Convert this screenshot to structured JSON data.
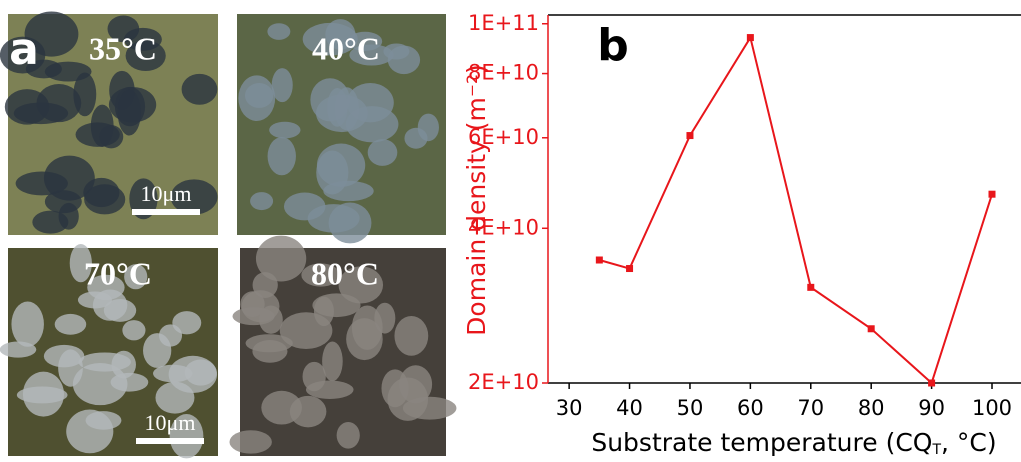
{
  "panel_a": {
    "label": "a",
    "images": [
      {
        "temperature": "35°C",
        "scale_bar": "10μm"
      },
      {
        "temperature": "40°C"
      },
      {
        "temperature": "70°C",
        "scale_bar": "10μm"
      },
      {
        "temperature": "80°C"
      }
    ]
  },
  "chart_data": {
    "type": "line",
    "panel_label": "b",
    "y_label": "Domain density (m⁻²)",
    "x_label": {
      "text": "Substrate temperature (CQ",
      "sub": "T",
      "tail": ", °C)"
    },
    "x": [
      35,
      40,
      50,
      60,
      70,
      80,
      90,
      100
    ],
    "values": [
      34700000000,
      33400000000,
      60600000000,
      94000000000,
      30700000000,
      25500000000,
      20000000000,
      46600000000
    ],
    "color": "#e8161b",
    "marker": "square",
    "log_y": true,
    "xlim": [
      26.5,
      104.8
    ],
    "xticks": [
      30,
      40,
      50,
      60,
      70,
      80,
      90,
      100
    ],
    "ylim": [
      20000000000,
      104000000000
    ],
    "yticks": [
      {
        "value": 20000000000,
        "label": "2E+10"
      },
      {
        "value": 40000000000,
        "label": "4E+10"
      },
      {
        "value": 60000000000,
        "label": "6E+10"
      },
      {
        "value": 80000000000,
        "label": "8E+10"
      },
      {
        "value": 100000000000,
        "label": "1E+11"
      }
    ]
  }
}
